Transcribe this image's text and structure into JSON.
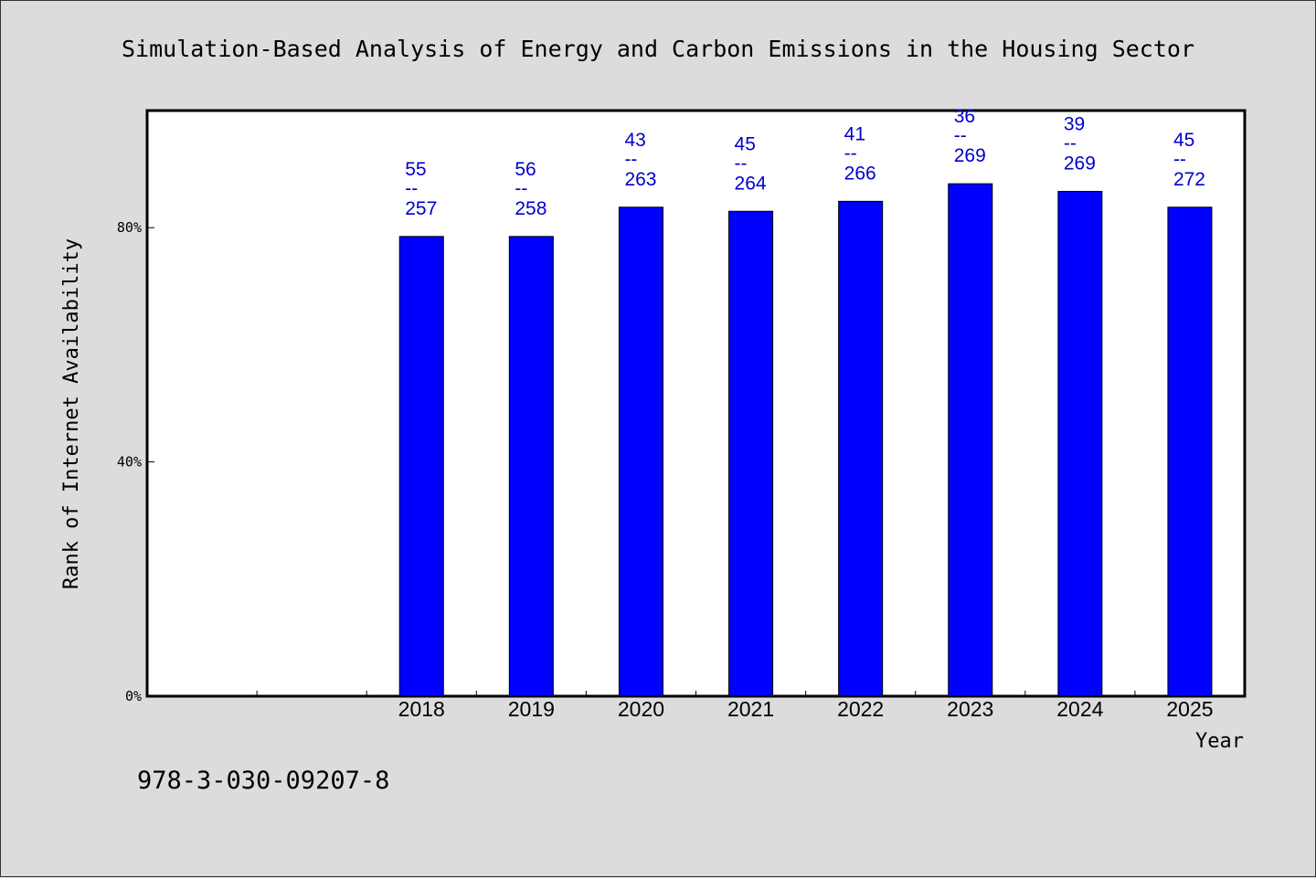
{
  "chart_data": {
    "type": "bar",
    "title": "Simulation-Based Analysis of Energy and Carbon Emissions in the Housing Sector",
    "xlabel": "Year",
    "ylabel": "Rank of Internet Availability",
    "categories": [
      "2018",
      "2019",
      "2020",
      "2021",
      "2022",
      "2023",
      "2024",
      "2025"
    ],
    "values": [
      78.5,
      78.5,
      83.5,
      82.8,
      84.5,
      87.5,
      86.2,
      83.5
    ],
    "data_labels": [
      {
        "top": "55",
        "mid": "--",
        "bottom": "257"
      },
      {
        "top": "56",
        "mid": "--",
        "bottom": "258"
      },
      {
        "top": "43",
        "mid": "--",
        "bottom": "263"
      },
      {
        "top": "45",
        "mid": "--",
        "bottom": "264"
      },
      {
        "top": "41",
        "mid": "--",
        "bottom": "266"
      },
      {
        "top": "36",
        "mid": "--",
        "bottom": "269"
      },
      {
        "top": "39",
        "mid": "--",
        "bottom": "269"
      },
      {
        "top": "45",
        "mid": "--",
        "bottom": "272"
      }
    ],
    "yticks": [
      0,
      40,
      80
    ],
    "ytick_labels": [
      "0%",
      "40%",
      "80%"
    ],
    "ylim": [
      0,
      100
    ],
    "empty_leading_slots": 2,
    "grid": false,
    "bar_color": "#0000ff",
    "label_color": "#0000cc",
    "background": "#dcdcdc",
    "plot_background": "#ffffff"
  },
  "footer_text": "978-3-030-09207-8"
}
